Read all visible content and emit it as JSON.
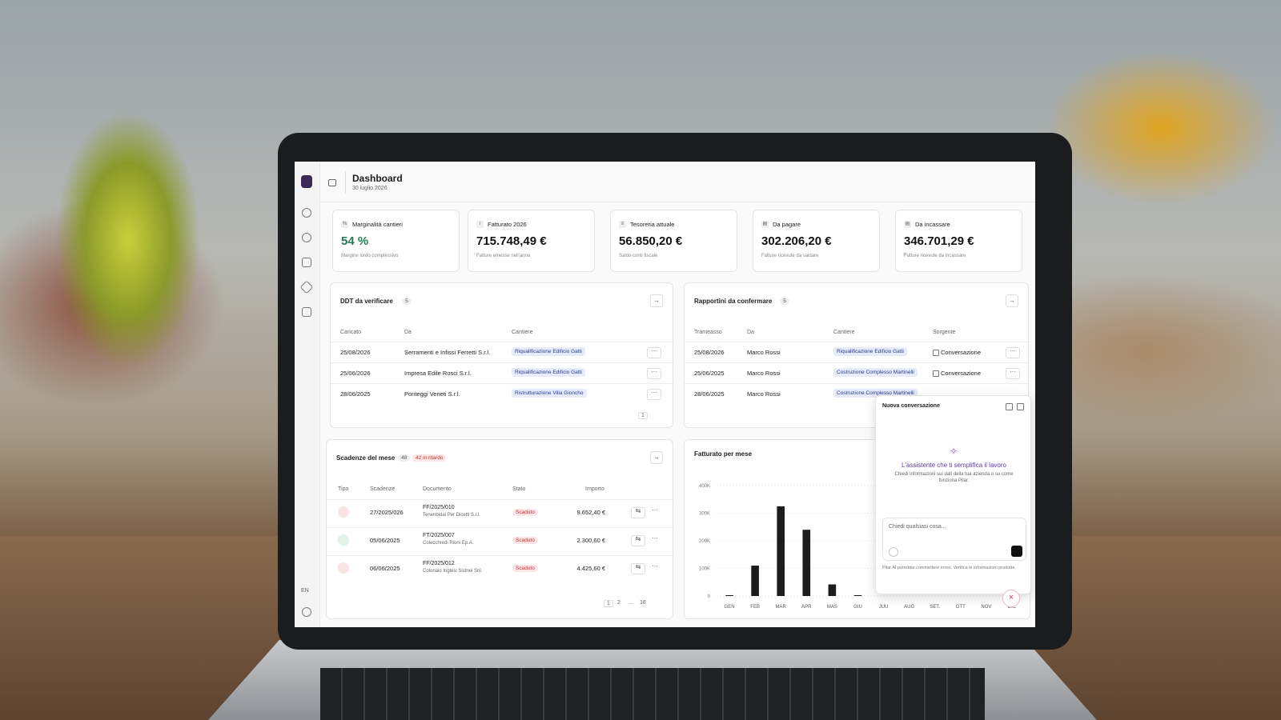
{
  "header": {
    "title": "Dashboard",
    "date": "30 luglio 2026"
  },
  "sidebar": {
    "lang": "EN"
  },
  "kpis": [
    {
      "icon": "%",
      "label": "Marginalità cantieri",
      "value": "54 %",
      "note": "Margine lordo complessivo"
    },
    {
      "icon": "i",
      "label": "Fatturato 2026",
      "value": "715.748,49 €",
      "note": "Fatture emesse nell'anno"
    },
    {
      "icon": "≡",
      "label": "Tesoreria attuale",
      "value": "56.850,20 €",
      "note": "Saldo conti fiscale"
    },
    {
      "icon": "▤",
      "label": "Da pagare",
      "value": "302.206,20 €",
      "note": "Fatture ricevute da saldare"
    },
    {
      "icon": "▤",
      "label": "Da incassare",
      "value": "346.701,29 €",
      "note": "Fatture ricevute da incassare"
    }
  ],
  "ddt": {
    "title": "DDT da verificare",
    "count": "5",
    "columns": [
      "Caricato",
      "Da",
      "Cantiere"
    ],
    "rows": [
      [
        "25/08/2026",
        "Serramenti e Infissi Ferretti S.r.l.",
        "Riqualificazione Edificio Gatti"
      ],
      [
        "25/06/2026",
        "Impresa Edile Rosci S.r.l.",
        "Riqualificazione Edificio Gatti"
      ],
      [
        "28/06/2025",
        "Ponteggi Veneti S.r.l.",
        "Ristrutturazione Villa Gioncho"
      ]
    ],
    "pages": [
      "1"
    ]
  },
  "rapportini": {
    "title": "Rapportini da confermare",
    "count": "5",
    "columns": [
      "Trameasso",
      "Da",
      "Cantiere",
      "Sorgente"
    ],
    "rows": [
      [
        "25/08/2026",
        "Marco Rossi",
        "Riqualificazione Edificio Gatti",
        "Conversazione"
      ],
      [
        "25/06/2025",
        "Marco Rossi",
        "Costruzione Complesso Martinelli",
        "Conversazione"
      ],
      [
        "28/06/2025",
        "Marco Rossi",
        "Costruzione Complesso Martinelli"
      ]
    ]
  },
  "scadenze": {
    "title": "Scadenze del mese",
    "count": "48",
    "late": "42 in ritardo",
    "columns": [
      "Tipo",
      "Scadenze",
      "Documento",
      "Stato",
      "Importo"
    ],
    "rows": [
      {
        "date": "27/2025/026",
        "doc": "FF/2025/010",
        "party": "Tenenbidai Per Dicetti S.r.l.",
        "status": "Scaduto",
        "amount": "9.652,40 €"
      },
      {
        "date": "05/06/2025",
        "doc": "FT/2025/007",
        "party": "Colecchredi Rioni Ep.A.",
        "status": "Scaduto",
        "amount": "2.300,60 €"
      },
      {
        "date": "06/06/2025",
        "doc": "FF/2025/012",
        "party": "Colonaio Inglesi Sistnei Snl.",
        "status": "Scaduto",
        "amount": "4.425,60 €"
      }
    ],
    "pages": [
      "1",
      "2",
      "...",
      "18"
    ]
  },
  "chart_data": {
    "type": "bar",
    "title": "Fatturato per mese",
    "categories": [
      "GEN",
      "FEB",
      "MAR",
      "APR",
      "MAS",
      "GIU",
      "JUU",
      "AUG",
      "SET.",
      "OTT",
      "NOV",
      "DIC"
    ],
    "values": [
      3000,
      110000,
      325000,
      240000,
      42000,
      3000,
      0,
      0,
      0,
      0,
      0,
      0
    ],
    "color": "#1c1c1c",
    "ylim": [
      0,
      400000
    ],
    "yticks": [
      0,
      {
        "value": 100000,
        "label": "100K"
      },
      {
        "value": 200000,
        "label": "200K"
      },
      {
        "value": 300000,
        "label": "300K"
      },
      {
        "value": 400000,
        "label": "400K"
      }
    ],
    "grid": true
  },
  "chat": {
    "title": "Nuova conversazione",
    "heading": "L'assistente che ti semplifica il lavoro",
    "sub": "Chiedi informazioni sui dati della tua azienda o su come funziona Pilar.",
    "placeholder": "Chiedi qualsiasi cosa...",
    "disclaimer": "Pilar AI potrebbe commettere errori. Verifica le informazioni prodotte."
  }
}
